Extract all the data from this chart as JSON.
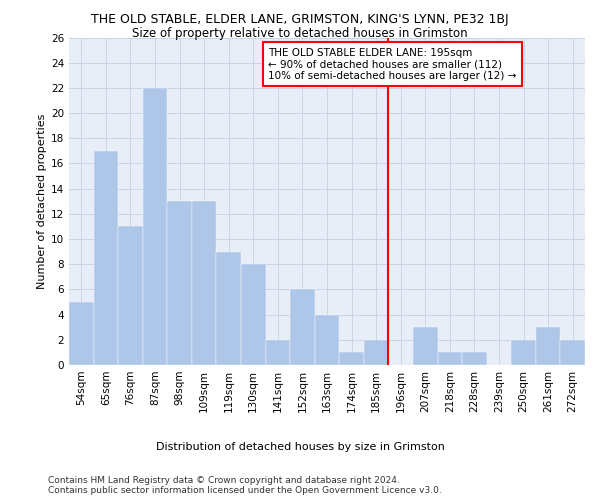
{
  "title": "THE OLD STABLE, ELDER LANE, GRIMSTON, KING'S LYNN, PE32 1BJ",
  "subtitle": "Size of property relative to detached houses in Grimston",
  "xlabel_bottom": "Distribution of detached houses by size in Grimston",
  "ylabel": "Number of detached properties",
  "categories": [
    "54sqm",
    "65sqm",
    "76sqm",
    "87sqm",
    "98sqm",
    "109sqm",
    "119sqm",
    "130sqm",
    "141sqm",
    "152sqm",
    "163sqm",
    "174sqm",
    "185sqm",
    "196sqm",
    "207sqm",
    "218sqm",
    "228sqm",
    "239sqm",
    "250sqm",
    "261sqm",
    "272sqm"
  ],
  "values": [
    5,
    17,
    11,
    22,
    13,
    13,
    9,
    8,
    2,
    6,
    4,
    1,
    2,
    0,
    3,
    1,
    1,
    0,
    2,
    3,
    2
  ],
  "bar_color": "#aec6e8",
  "bar_edge_color": "#aec6e8",
  "vline_color": "red",
  "annotation_text": "THE OLD STABLE ELDER LANE: 195sqm\n← 90% of detached houses are smaller (112)\n10% of semi-detached houses are larger (12) →",
  "annotation_box_color": "white",
  "annotation_box_edge": "red",
  "ylim": [
    0,
    26
  ],
  "yticks": [
    0,
    2,
    4,
    6,
    8,
    10,
    12,
    14,
    16,
    18,
    20,
    22,
    24,
    26
  ],
  "grid_color": "#c8d4e8",
  "bg_color": "#e8eef8",
  "footer": "Contains HM Land Registry data © Crown copyright and database right 2024.\nContains public sector information licensed under the Open Government Licence v3.0.",
  "title_fontsize": 9,
  "subtitle_fontsize": 8.5,
  "axis_label_fontsize": 8,
  "tick_fontsize": 7.5,
  "annotation_fontsize": 7.5,
  "footer_fontsize": 6.5
}
